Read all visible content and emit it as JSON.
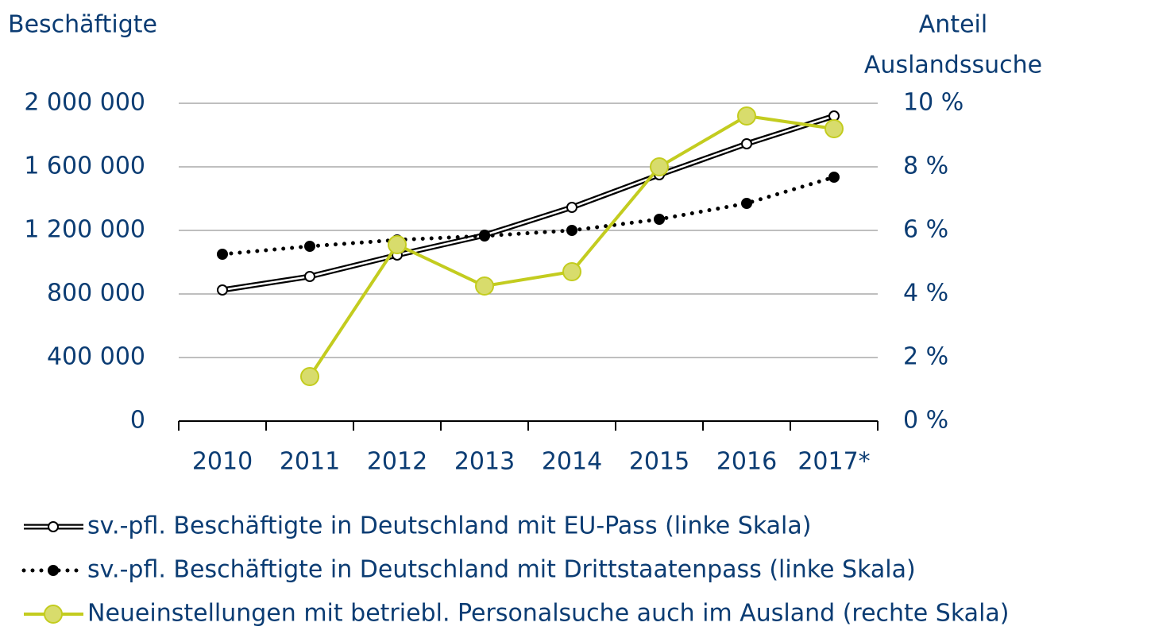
{
  "chart_data": {
    "type": "line",
    "y_label": "Beschäftigte",
    "y2_label": [
      "Anteil",
      "Auslandssuche"
    ],
    "categories": [
      "2010",
      "2011",
      "2012",
      "2013",
      "2014",
      "2015",
      "2016",
      "2017*"
    ],
    "ylim": [
      0,
      2000000
    ],
    "yticks": [
      0,
      {
        "value": 400000,
        "label": "400 000"
      },
      {
        "value": 800000,
        "label": "800 000"
      },
      {
        "value": 1200000,
        "label": "1 200 000"
      },
      {
        "value": 1600000,
        "label": "1 600 000"
      },
      {
        "value": 2000000,
        "label": "2 000 000"
      }
    ],
    "y2lim": [
      0,
      10
    ],
    "y2ticks": [
      {
        "value": 0,
        "label": "0 %"
      },
      {
        "value": 2,
        "label": "2 %"
      },
      {
        "value": 4,
        "label": "4 %"
      },
      {
        "value": 6,
        "label": "6 %"
      },
      {
        "value": 8,
        "label": "8 %"
      },
      {
        "value": 10,
        "label": "10 %"
      }
    ],
    "grid": true,
    "series": [
      {
        "name": "sv.-pfl. Beschäftigte in Deutschland mit EU-Pass (linke Skala)",
        "color": "#000000",
        "style": "double",
        "values": [
          825000,
          910000,
          1045000,
          1170000,
          1345000,
          1550000,
          1745000,
          1920000
        ]
      },
      {
        "name": "sv.-pfl. Beschäftigte in Deutschland mit Drittstaatenpass (linke Skala)",
        "color": "#000000",
        "style": "dotted",
        "values": [
          1050000,
          1100000,
          1140000,
          1165000,
          1200000,
          1270000,
          1370000,
          1535000
        ]
      },
      {
        "name": "Neueinstellungen mit betriebl. Personalsuche auch im Ausland (rechte Skala)",
        "color": "#c3cc1f",
        "style": "solid",
        "axis": "y2",
        "values": [
          null,
          1.4,
          5.55,
          4.25,
          4.7,
          8.0,
          9.6,
          9.2
        ]
      }
    ]
  }
}
